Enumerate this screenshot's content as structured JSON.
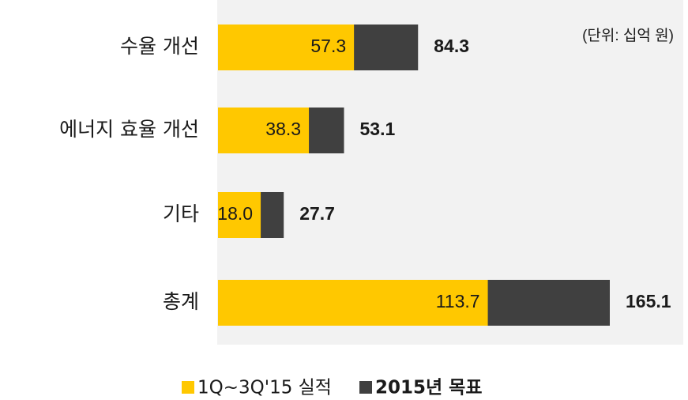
{
  "chart_data": {
    "type": "bar",
    "orientation": "horizontal",
    "note": "(단위: 십억 원)",
    "categories": [
      "수율 개선",
      "에너지 효율 개선",
      "기타",
      "총계"
    ],
    "series": [
      {
        "name": "1Q~3Q'15 실적",
        "color": "#ffc800",
        "values": [
          57.3,
          38.3,
          18.0,
          113.7
        ],
        "value_labels": [
          "57.3",
          "38.3",
          "18.0",
          "113.7"
        ]
      },
      {
        "name": "2015년 목표",
        "color": "#404040",
        "values": [
          84.3,
          53.1,
          27.7,
          165.1
        ]
      }
    ]
  }
}
